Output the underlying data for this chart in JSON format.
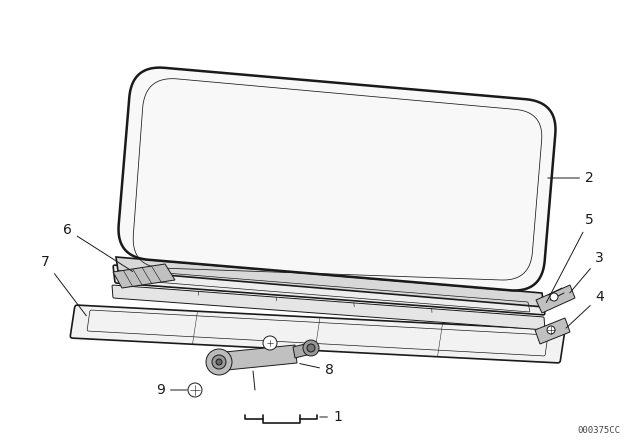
{
  "background_color": "#ffffff",
  "line_color": "#1a1a1a",
  "part_number_text": "000375CC",
  "figsize": [
    6.4,
    4.48
  ],
  "dpi": 100,
  "label_fontsize": 10,
  "panel_face": "#f8f8f8",
  "panel_face2": "#eeeeee",
  "panel_face3": "#f2f2f2",
  "shadow_face": "#d8d8d8",
  "hardware_face": "#c0c0c0"
}
